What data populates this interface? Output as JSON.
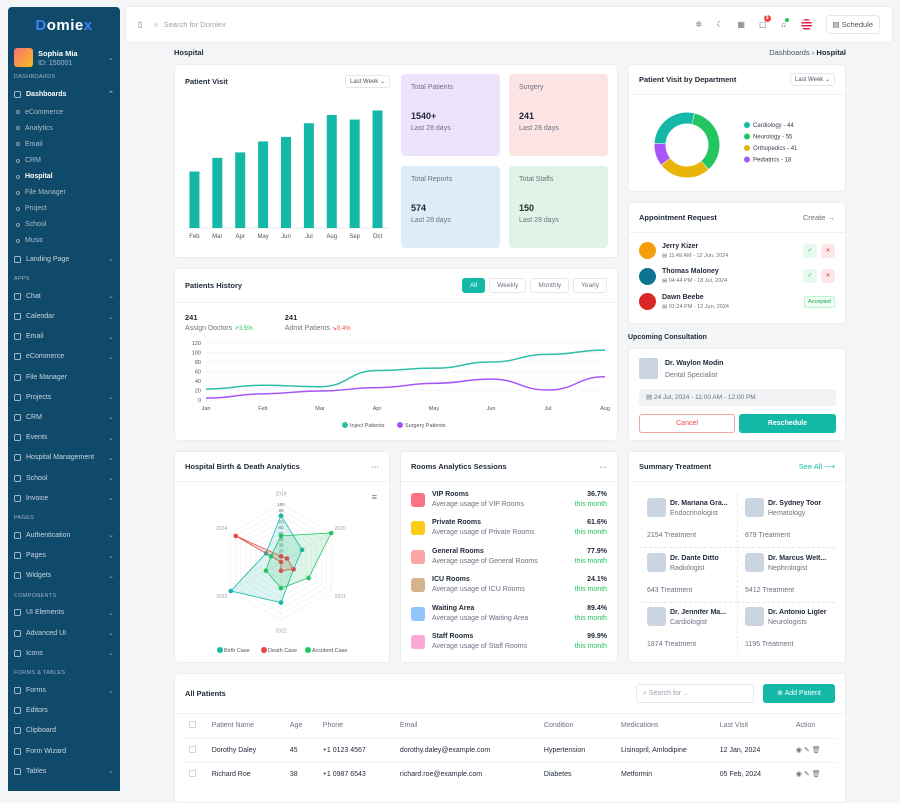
{
  "app": {
    "logo_a": "D",
    "logo_b": "omie",
    "logo_c": "x"
  },
  "user": {
    "name": "Sophia Mia",
    "id": "ID: 150001"
  },
  "sidebar": {
    "sec_dashboards": "DASHBOARDS",
    "dashboards": "Dashboards",
    "subitems": [
      "eCommerce",
      "Analytics",
      "Email",
      "CRM",
      "Hospital",
      "File Manager",
      "Project",
      "School",
      "Music"
    ],
    "landing": "Landing Page",
    "sec_apps": "APPS",
    "apps": [
      "Chat",
      "Calendar",
      "Email",
      "eCommerce",
      "File Manager",
      "Projects",
      "CRM",
      "Events",
      "Hospital Management",
      "School",
      "Invoice"
    ],
    "sec_pages": "PAGES",
    "pages": [
      "Authentication",
      "Pages",
      "Widgets"
    ],
    "sec_components": "COMPONENTS",
    "components": [
      "UI Elements",
      "Advanced UI",
      "Icons"
    ],
    "sec_forms": "FORMS & TABLES",
    "forms": [
      "Forms",
      "Editors",
      "Clipboard",
      "Form Wizard",
      "Tables"
    ]
  },
  "topbar": {
    "search_placeholder": "Search for Domiex",
    "cart_count": "3",
    "schedule": "Schedule"
  },
  "page": {
    "title": "Hospital",
    "crumb_parent": "Dashboards",
    "crumb_current": "Hospital"
  },
  "patient_visit": {
    "title": "Patient Visit",
    "filter": "Last Week"
  },
  "stats": [
    {
      "label": "Total Patients",
      "value": "1540+",
      "sub": "Last 28 days",
      "color": "#ede4fb"
    },
    {
      "label": "Surgery",
      "value": "241",
      "sub": "Last 28 days",
      "color": "#fde4e4"
    },
    {
      "label": "Total Reports",
      "value": "574",
      "sub": "Last 28 days",
      "color": "#dcecf8"
    },
    {
      "label": "Total Staffs",
      "value": "150",
      "sub": "Last 28 days",
      "color": "#dff3e6"
    }
  ],
  "history": {
    "title": "Patients History",
    "tabs": [
      "All",
      "Weekly",
      "Monthly",
      "Yearly"
    ],
    "m1_value": "241",
    "m1_label": "Assign Doctors",
    "m1_change": "3.5%",
    "m2_value": "241",
    "m2_label": "Admit Patients",
    "m2_change": "0.4%"
  },
  "birth": {
    "title": "Hospital Birth & Death Analytics"
  },
  "rooms": {
    "title": "Rooms Analytics Sessions",
    "items": [
      {
        "name": "VIP Rooms",
        "desc": "Average usage of VIP Rooms",
        "pct": "36.7%",
        "period": "this month",
        "color": "#fb7185"
      },
      {
        "name": "Private Rooms",
        "desc": "Average usage of Private Rooms",
        "pct": "61.6%",
        "period": "this month",
        "color": "#facc15"
      },
      {
        "name": "General Rooms",
        "desc": "Average usage of General Rooms",
        "pct": "77.9%",
        "period": "this month",
        "color": "#fca5a5"
      },
      {
        "name": "ICU Rooms",
        "desc": "Average usage of ICU Rooms",
        "pct": "24.1%",
        "period": "this month",
        "color": "#d6b48c"
      },
      {
        "name": "Waiting Area",
        "desc": "Average usage of Waiting Area",
        "pct": "89.4%",
        "period": "this month",
        "color": "#93c5fd"
      },
      {
        "name": "Staff Rooms",
        "desc": "Average usage of Staff Rooms",
        "pct": "99.9%",
        "period": "this month",
        "color": "#f9a8d4"
      }
    ]
  },
  "department": {
    "title": "Patient Visit by Department",
    "filter": "Last Week"
  },
  "appointments": {
    "title": "Appointment Request",
    "create": "Create",
    "accepted": "Accepted",
    "items": [
      {
        "name": "Jerry Kizer",
        "time": "11:49 AM - 12 Jun, 2024",
        "status": "pending",
        "color": "#f59e0b"
      },
      {
        "name": "Thomas Maloney",
        "time": "04:44 PM - 18 Jul, 2024",
        "status": "pending",
        "color": "#0e7490"
      },
      {
        "name": "Dawn Beebe",
        "time": "01:24 PM - 12 Jun, 2024",
        "status": "accepted",
        "color": "#dc2626"
      }
    ]
  },
  "consultation": {
    "heading": "Upcoming Consultation",
    "doctor": "Dr. Waylon Modin",
    "specialty": "Dental Specialist",
    "when": "24 Jul, 2024 - 11:00 AM - 12:00 PM",
    "cancel": "Cancel",
    "reschedule": "Reschedule"
  },
  "summary": {
    "title": "Summary Treatment",
    "see_all": "See All",
    "doctors": [
      {
        "name": "Dr. Mariana Gra...",
        "spec": "Endocrinologist",
        "count": "2154 Treatment"
      },
      {
        "name": "Dr. Sydney Toor",
        "spec": "Hematology",
        "count": "879 Treatment"
      },
      {
        "name": "Dr. Dante Ditto",
        "spec": "Radiologist",
        "count": "643 Treatment"
      },
      {
        "name": "Dr. Marcus Welt...",
        "spec": "Nephrologist",
        "count": "5412 Treatment"
      },
      {
        "name": "Dr. Jennifer Ma...",
        "spec": "Cardiologist",
        "count": "1874 Treatment"
      },
      {
        "name": "Dr. Antonio Ligler",
        "spec": "Neurologists",
        "count": "1195 Treatment"
      }
    ]
  },
  "patients": {
    "title": "All Patients",
    "search_placeholder": "Search for ...",
    "add": "Add Patient",
    "columns": [
      "Patient Name",
      "Age",
      "Phone",
      "Email",
      "Condition",
      "Medications",
      "Last Visit",
      "Action"
    ],
    "rows": [
      [
        "Dorothy Daley",
        "45",
        "+1 0123 4567",
        "dorothy.daley@example.com",
        "Hypertension",
        "Lisinopril, Amlodipine",
        "12 Jan, 2024"
      ],
      [
        "Richard Roe",
        "38",
        "+1 0987 6543",
        "richard.roe@example.com",
        "Diabetes",
        "Metformin",
        "05 Feb, 2024"
      ]
    ]
  },
  "chart_data": [
    {
      "type": "bar",
      "title": "Patient Visit",
      "categories": [
        "Feb",
        "Mar",
        "Apr",
        "May",
        "Jun",
        "Jul",
        "Aug",
        "Sep",
        "Oct"
      ],
      "values": [
        62,
        77,
        83,
        95,
        100,
        115,
        124,
        119,
        129
      ],
      "color": "#14b8a6"
    },
    {
      "type": "line",
      "title": "Patients History",
      "x": [
        "Jan",
        "Feb",
        "Mar",
        "Apr",
        "May",
        "Jun",
        "Jul",
        "Aug"
      ],
      "ylim": [
        0,
        120
      ],
      "yticks": [
        0,
        20,
        40,
        60,
        80,
        100,
        120
      ],
      "series": [
        {
          "name": "Inject Patients",
          "color": "#2dbfa5",
          "values": [
            23,
            31,
            28,
            62,
            67,
            80,
            96,
            105
          ]
        },
        {
          "name": "Surgery Patients",
          "color": "#a855f7",
          "values": [
            4,
            13,
            19,
            26,
            35,
            44,
            21,
            49
          ]
        }
      ]
    },
    {
      "type": "pie",
      "title": "Patient Visit by Department",
      "labels": [
        "Cardiology",
        "Neurology",
        "Orthopedics",
        "Pediatrics"
      ],
      "values": [
        44,
        55,
        41,
        18
      ],
      "colors": [
        "#14b8a6",
        "#22c55e",
        "#eab308",
        "#a855f7"
      ]
    },
    {
      "type": "radar",
      "title": "Hospital Birth & Death Analytics",
      "axes": [
        "2019",
        "2020",
        "2021",
        "2022",
        "2023",
        "2024"
      ],
      "rticks": [
        0,
        10,
        20,
        30,
        40,
        50,
        60,
        70,
        80,
        90,
        100
      ],
      "series": [
        {
          "name": "Birth Case",
          "color": "#14b8a6",
          "values": [
            80,
            42,
            25,
            70,
            100,
            30
          ]
        },
        {
          "name": "Death Case",
          "color": "#ef4444",
          "values": [
            10,
            12,
            25,
            15,
            0,
            90
          ]
        },
        {
          "name": "Accident Case",
          "color": "#22c55e",
          "values": [
            45,
            100,
            55,
            45,
            30,
            20
          ]
        }
      ]
    }
  ]
}
